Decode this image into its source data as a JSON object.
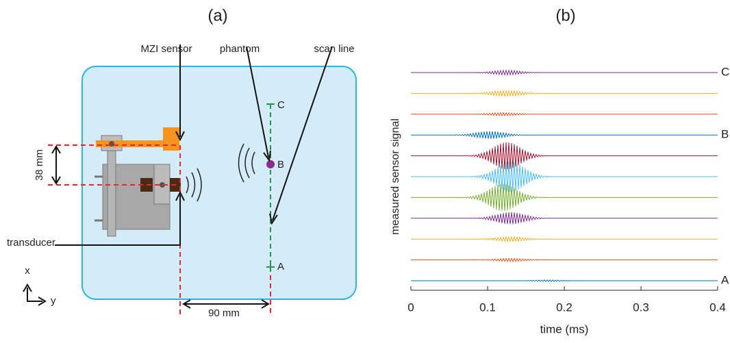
{
  "panels": {
    "a": "(a)",
    "b": "(b)"
  },
  "diagram": {
    "mzi_sensor": "MZI sensor",
    "phantom": "phantom",
    "scan_line": "scan line",
    "transducer": "transducer",
    "distance_vertical": "38 mm",
    "distance_horizontal": "90 mm",
    "axis_x": "x",
    "axis_y": "y",
    "point_a": "A",
    "point_b": "B",
    "point_c": "C"
  },
  "chart_data": {
    "type": "line",
    "xlabel": "time (ms)",
    "ylabel": "measured sensor signal",
    "xlim": [
      0,
      0.4
    ],
    "xticks": [
      0,
      0.1,
      0.2,
      0.3,
      0.4
    ],
    "series": [
      {
        "name": "C",
        "color": "#7e2f8e",
        "burst_time": 0.125,
        "amplitude": 0.15
      },
      {
        "name": null,
        "color": "#edb120",
        "burst_time": 0.125,
        "amplitude": 0.2
      },
      {
        "name": null,
        "color": "#d95319",
        "burst_time": 0.12,
        "amplitude": 0.1
      },
      {
        "name": "B",
        "color": "#0072bd",
        "burst_time": 0.103,
        "amplitude": 0.25
      },
      {
        "name": null,
        "color": "#a2142f",
        "burst_time": 0.125,
        "amplitude": 0.9
      },
      {
        "name": null,
        "color": "#4dbeee",
        "burst_time": 0.13,
        "amplitude": 1.0
      },
      {
        "name": null,
        "color": "#77ac30",
        "burst_time": 0.12,
        "amplitude": 0.9
      },
      {
        "name": null,
        "color": "#7e2f8e",
        "burst_time": 0.13,
        "amplitude": 0.4
      },
      {
        "name": null,
        "color": "#edb120",
        "burst_time": 0.13,
        "amplitude": 0.15
      },
      {
        "name": null,
        "color": "#d95319",
        "burst_time": 0.13,
        "amplitude": 0.1
      },
      {
        "name": "A",
        "color": "#0072bd",
        "burst_time": 0.18,
        "amplitude": 0.05
      }
    ]
  }
}
